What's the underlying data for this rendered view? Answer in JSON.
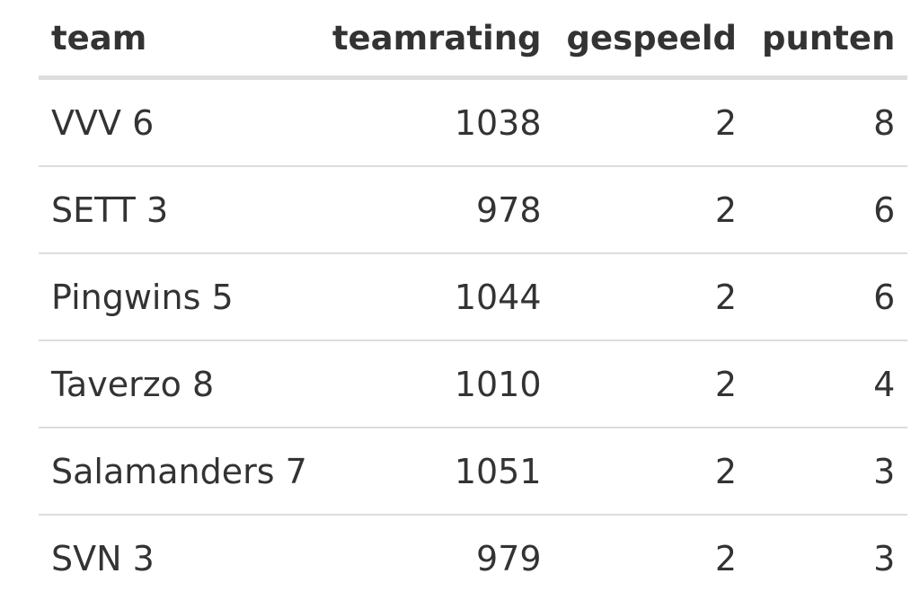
{
  "table": {
    "header": [
      "team",
      "teamrating",
      "gespeeld",
      "punten"
    ],
    "rows": [
      [
        "VVV 6",
        "1038",
        "2",
        "8"
      ],
      [
        "SETT 3",
        "978",
        "2",
        "6"
      ],
      [
        "Pingwins 5",
        "1044",
        "2",
        "6"
      ],
      [
        "Taverzo 8",
        "1010",
        "2",
        "4"
      ],
      [
        "Salamanders 7",
        "1051",
        "2",
        "3"
      ],
      [
        "SVN 3",
        "979",
        "2",
        "3"
      ]
    ]
  }
}
